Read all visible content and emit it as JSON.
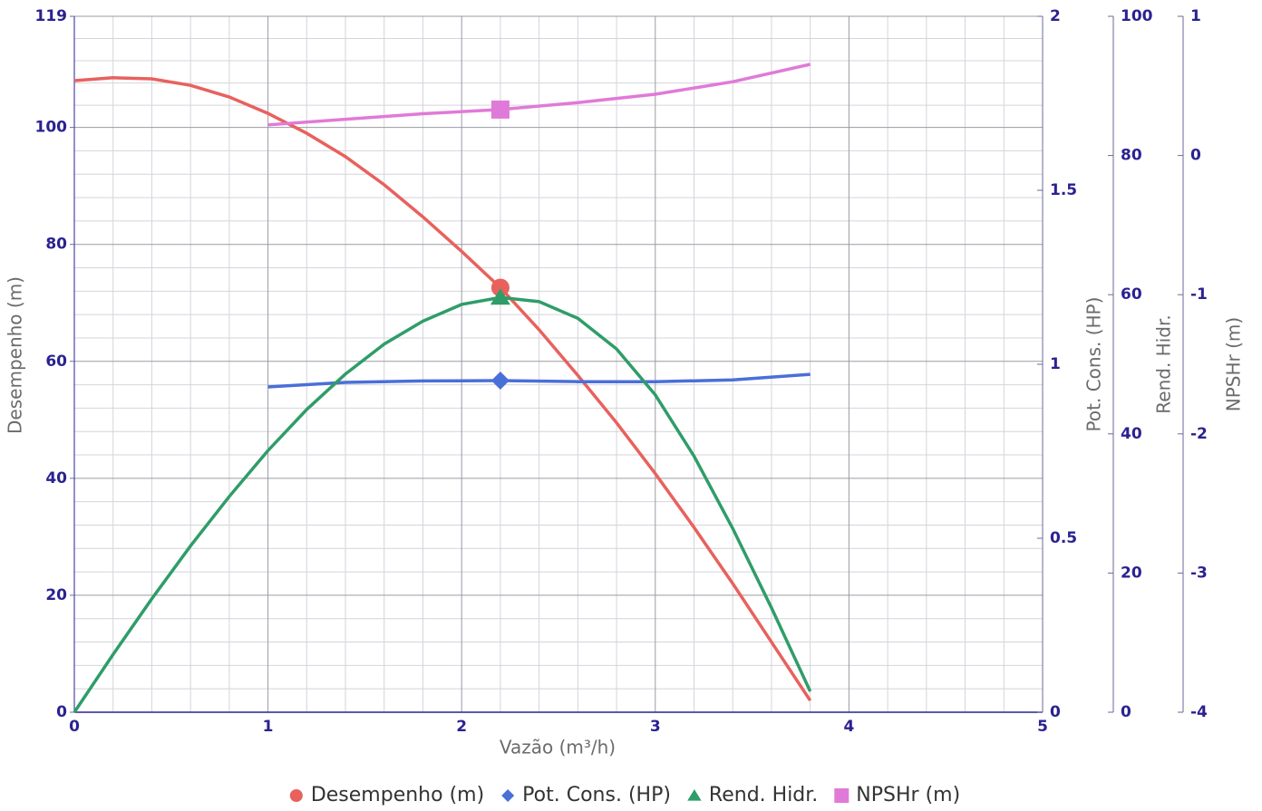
{
  "chart_data": {
    "type": "line",
    "xlabel": "Vazão (m³/h)",
    "xlim": [
      0,
      5
    ],
    "xticks": [
      0,
      1,
      2,
      3,
      4,
      5
    ],
    "yaxes": [
      {
        "id": "y",
        "title": "Desempenho (m)",
        "lim": [
          0,
          119
        ],
        "ticks": [
          0,
          20,
          40,
          60,
          80,
          100,
          119
        ]
      },
      {
        "id": "y2",
        "title": "Pot. Cons. (HP)",
        "lim": [
          0,
          2
        ],
        "ticks": [
          0,
          0.5,
          1,
          1.5,
          2
        ]
      },
      {
        "id": "y3",
        "title": "Rend. Hidr.",
        "lim": [
          0,
          100
        ],
        "ticks": [
          0,
          20,
          40,
          60,
          80,
          100
        ]
      },
      {
        "id": "y4",
        "title": "NPSHr (m)",
        "lim": [
          -4,
          1
        ],
        "ticks": [
          -4,
          -3,
          -2,
          -1,
          0,
          1
        ]
      }
    ],
    "grid": true,
    "series": [
      {
        "name": "Desempenho (m)",
        "color": "#e8615d",
        "axis": "y",
        "marker": "circle",
        "marker_index": 11,
        "x": [
          0,
          0.2,
          0.4,
          0.6,
          0.8,
          1,
          1.2,
          1.4,
          1.6,
          1.8,
          2,
          2.2,
          2.4,
          2.6,
          2.8,
          3,
          3.2,
          3.4,
          3.6,
          3.8
        ],
        "values": [
          108,
          108.5,
          108.3,
          107.2,
          105.2,
          102.4,
          99,
          95,
          90.2,
          84.7,
          78.8,
          72.6,
          65.4,
          57.6,
          49.5,
          40.8,
          31.6,
          22,
          12,
          2
        ]
      },
      {
        "name": "Pot. Cons. (HP)",
        "color": "#4a6fd8",
        "axis": "y2",
        "marker": "diamond",
        "marker_index": 3,
        "x": [
          1,
          1.4,
          1.8,
          2.2,
          2.6,
          3,
          3.4,
          3.8
        ],
        "values": [
          0.935,
          0.948,
          0.952,
          0.953,
          0.95,
          0.95,
          0.955,
          0.971
        ]
      },
      {
        "name": "Rend. Hidr.",
        "color": "#2f9d68",
        "axis": "y3",
        "marker": "triangle",
        "marker_index": 11,
        "x": [
          0,
          0.2,
          0.4,
          0.6,
          0.8,
          1,
          1.2,
          1.4,
          1.6,
          1.8,
          2,
          2.2,
          2.4,
          2.6,
          2.8,
          3,
          3.2,
          3.4,
          3.6,
          3.8
        ],
        "values": [
          0,
          8.3,
          16.3,
          23.9,
          31,
          37.6,
          43.5,
          48.6,
          52.9,
          56.2,
          58.6,
          59.6,
          59,
          56.6,
          52.2,
          45.6,
          36.8,
          26.4,
          15,
          3
        ]
      },
      {
        "name": "NPSHr (m)",
        "color": "#e07ad8",
        "axis": "y4",
        "marker": "square",
        "marker_index": 3,
        "x": [
          1,
          1.4,
          1.8,
          2.2,
          2.6,
          3,
          3.4,
          3.8
        ],
        "values": [
          0.22,
          0.26,
          0.3,
          0.33,
          0.38,
          0.44,
          0.53,
          0.655
        ]
      }
    ]
  }
}
